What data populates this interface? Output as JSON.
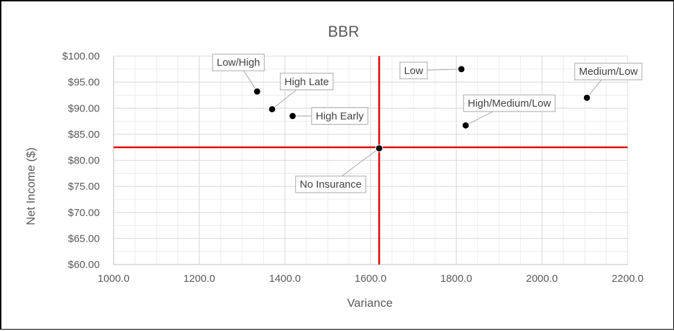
{
  "chart_data": {
    "type": "scatter",
    "title": "BBR",
    "xlabel": "Variance",
    "ylabel": "Net Income ($)",
    "xlim": [
      1000,
      2200
    ],
    "ylim": [
      60,
      100
    ],
    "x_ticks": [
      1000,
      1200,
      1400,
      1600,
      1800,
      2000,
      2200
    ],
    "x_tick_labels": [
      "1000.0",
      "1200.0",
      "1400.0",
      "1600.0",
      "1800.0",
      "2000.0",
      "2200.0"
    ],
    "y_ticks": [
      60,
      65,
      70,
      75,
      80,
      85,
      90,
      95,
      100
    ],
    "y_tick_labels": [
      "$60.00",
      "$65.00",
      "$70.00",
      "$75.00",
      "$80.00",
      "$85.00",
      "$90.00",
      "$95.00",
      "$100.00"
    ],
    "grid": true,
    "minor_grid": true,
    "reference_lines": {
      "x": 1620,
      "y": 82.5,
      "color": "#e00000"
    },
    "colors": {
      "marker": "#000000",
      "grid_major": "#d9d9d9",
      "grid_minor": "#ececec",
      "axis": "#bfbfbf",
      "text": "#595959"
    },
    "points": [
      {
        "label": "Low/High",
        "x": 1335,
        "y": 93.2
      },
      {
        "label": "High Late",
        "x": 1370,
        "y": 89.8
      },
      {
        "label": "High Early",
        "x": 1418,
        "y": 88.5
      },
      {
        "label": "No Insurance",
        "x": 1620,
        "y": 82.3
      },
      {
        "label": "Low",
        "x": 1812,
        "y": 97.5
      },
      {
        "label": "High/Medium/Low",
        "x": 1822,
        "y": 86.7
      },
      {
        "label": "Medium/Low",
        "x": 2105,
        "y": 92.0
      }
    ]
  }
}
